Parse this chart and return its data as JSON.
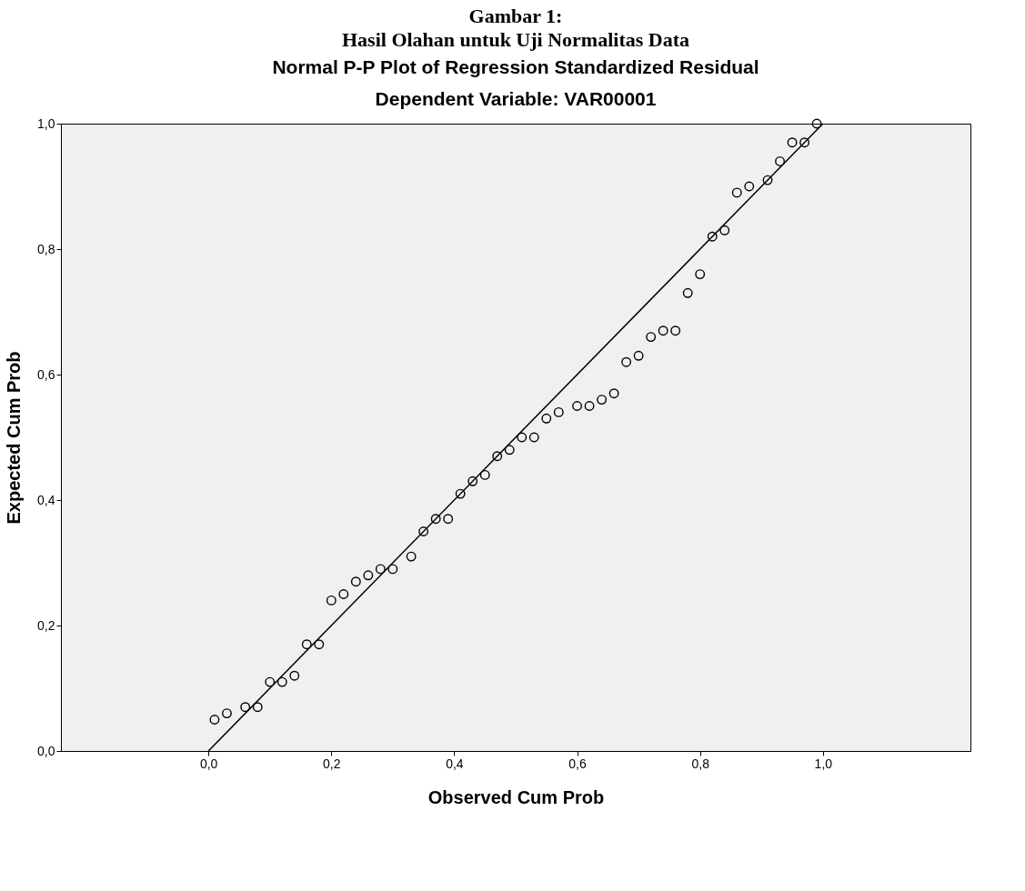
{
  "chart_data": {
    "type": "scatter",
    "title": "Normal P-P Plot of Regression Standardized Residual",
    "subtitle": "Dependent Variable: VAR00001",
    "annotations": [
      "Gambar 1:",
      "Hasil Olahan untuk Uji Normalitas Data"
    ],
    "xlabel": "Observed Cum Prob",
    "ylabel": "Expected Cum Prob",
    "series": [
      {
        "color": "#000000",
        "marker": "circle",
        "x": [
          0.01,
          0.03,
          0.06,
          0.08,
          0.1,
          0.12,
          0.14,
          0.16,
          0.18,
          0.2,
          0.22,
          0.24,
          0.26,
          0.28,
          0.3,
          0.33,
          0.35,
          0.37,
          0.39,
          0.41,
          0.43,
          0.45,
          0.47,
          0.49,
          0.51,
          0.53,
          0.55,
          0.57,
          0.6,
          0.62,
          0.64,
          0.66,
          0.68,
          0.7,
          0.72,
          0.74,
          0.76,
          0.78,
          0.8,
          0.82,
          0.84,
          0.86,
          0.88,
          0.91,
          0.93,
          0.95,
          0.97,
          0.99
        ],
        "values": [
          0.05,
          0.06,
          0.07,
          0.07,
          0.11,
          0.11,
          0.12,
          0.17,
          0.17,
          0.24,
          0.25,
          0.27,
          0.28,
          0.29,
          0.29,
          0.31,
          0.35,
          0.37,
          0.37,
          0.41,
          0.43,
          0.44,
          0.47,
          0.48,
          0.5,
          0.5,
          0.53,
          0.54,
          0.55,
          0.55,
          0.56,
          0.57,
          0.62,
          0.63,
          0.66,
          0.67,
          0.67,
          0.73,
          0.76,
          0.82,
          0.83,
          0.89,
          0.9,
          0.91,
          0.94,
          0.97,
          0.97,
          1.0
        ]
      },
      {
        "type": "line",
        "color": "#000000",
        "line_style": "solid",
        "x": [
          0,
          1
        ],
        "values": [
          0,
          1
        ]
      }
    ],
    "xlim": [
      -0.24,
      1.24
    ],
    "ylim": [
      0,
      1
    ],
    "xticks": [
      {
        "value": 0,
        "label": "0,0"
      },
      {
        "value": 0.2,
        "label": "0,2"
      },
      {
        "value": 0.4,
        "label": "0,4"
      },
      {
        "value": 0.6,
        "label": "0,6"
      },
      {
        "value": 0.8,
        "label": "0,8"
      },
      {
        "value": 1,
        "label": "1,0"
      }
    ],
    "yticks": [
      {
        "value": 0,
        "label": "0,0"
      },
      {
        "value": 0.2,
        "label": "0,2"
      },
      {
        "value": 0.4,
        "label": "0,4"
      },
      {
        "value": 0.6,
        "label": "0,6"
      },
      {
        "value": 0.8,
        "label": "0,8"
      },
      {
        "value": 1,
        "label": "1,0"
      }
    ],
    "grid": false
  }
}
